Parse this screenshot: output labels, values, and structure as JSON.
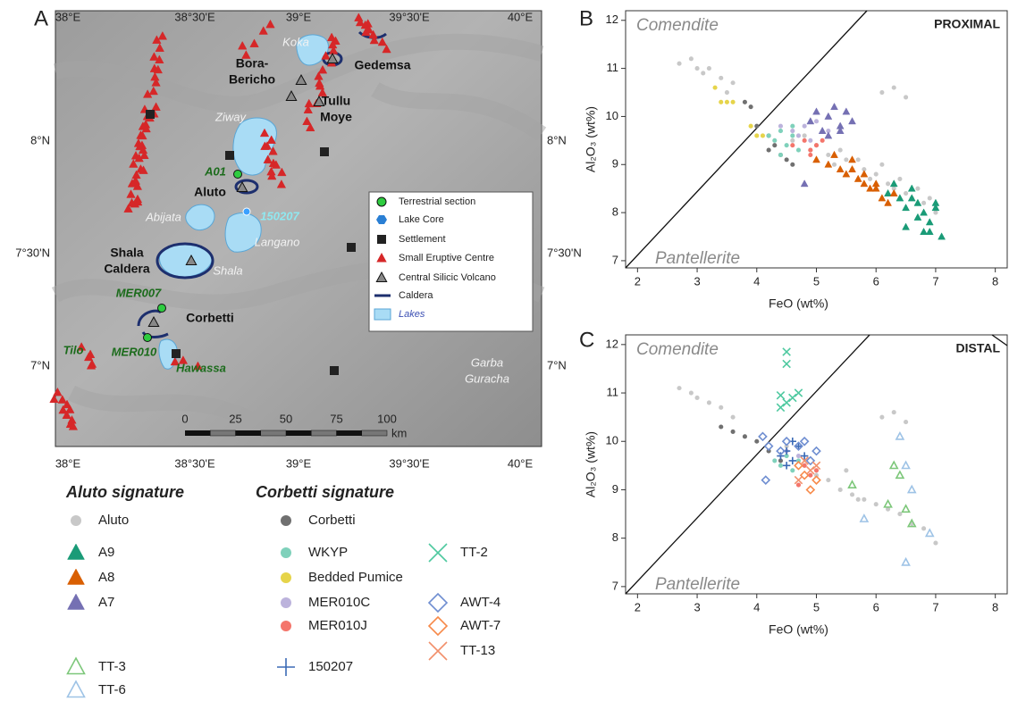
{
  "panel_labels": [
    "A",
    "B",
    "C"
  ],
  "map": {
    "lon_ticks": [
      "38°E",
      "38°30'E",
      "39°E",
      "39°30'E",
      "40°E"
    ],
    "lat_ticks": [
      "8°N",
      "7°30'N",
      "7°N"
    ],
    "places": [
      [
        "Koka"
      ],
      [
        "Bora-",
        "Bericho"
      ],
      [
        "Gedemsa"
      ],
      [
        "Tullu",
        "Moye"
      ],
      [
        "Ziway"
      ],
      [
        "A01"
      ],
      [
        "Aluto"
      ],
      [
        "Abijata"
      ],
      [
        "150207"
      ],
      [
        "Langano"
      ],
      [
        "Shala",
        "Caldera"
      ],
      [
        "Shala"
      ],
      [
        "MER007"
      ],
      [
        "Corbetti"
      ],
      [
        "Tilo"
      ],
      [
        "MER010"
      ],
      [
        "Hawassa"
      ],
      [
        "Garba",
        "Guracha"
      ]
    ],
    "legend": [
      "Terrestrial section",
      "Lake Core",
      "Settlement",
      "Small Eruptive Centre",
      "Central Silicic Volcano",
      "Caldera",
      "Lakes"
    ],
    "scale_bar": {
      "ticks": [
        0,
        25,
        50,
        75,
        100
      ],
      "unit": "km"
    }
  },
  "chart_data": {
    "type": "scatter",
    "x_label": "FeO (wt%)",
    "y_label": "Al₂O₃ (wt%)",
    "xlim": [
      1.8,
      8.2
    ],
    "ylim": [
      6.85,
      12.2
    ],
    "xticks": [
      2,
      3,
      4,
      5,
      6,
      7,
      8
    ],
    "yticks": [
      7,
      8,
      9,
      10,
      11,
      12
    ],
    "panels": [
      {
        "title": "PROXIMAL",
        "annotations": [
          "Comendite",
          "Pantellerite"
        ]
      },
      {
        "title": "DISTAL",
        "annotations": [
          "Comendite",
          "Pantellerite"
        ]
      }
    ],
    "groups": [
      {
        "title": "Aluto signature",
        "series": [
          {
            "name": "Aluto",
            "color": "#c8c8c8",
            "marker": "circle",
            "panels": [
              {
                "x": [
                  2.7,
                  2.9,
                  3.0,
                  3.1,
                  3.2,
                  3.4,
                  3.5,
                  3.6,
                  4.6,
                  4.9,
                  5.0,
                  5.2,
                  5.3,
                  5.5,
                  5.6,
                  5.8,
                  5.9,
                  6.0,
                  6.1,
                  6.2,
                  6.3,
                  6.4,
                  6.5,
                  6.6,
                  6.7,
                  6.8,
                  6.9,
                  7.0,
                  6.1,
                  6.3,
                  6.5,
                  5.4,
                  5.7,
                  4.8
                ],
                "y": [
                  11.1,
                  11.2,
                  11.0,
                  10.9,
                  11.0,
                  10.8,
                  10.5,
                  10.7,
                  9.5,
                  9.3,
                  9.4,
                  9.2,
                  9.0,
                  9.1,
                  8.9,
                  8.9,
                  8.7,
                  8.8,
                  9.0,
                  8.6,
                  8.5,
                  8.7,
                  8.4,
                  8.3,
                  8.5,
                  8.2,
                  8.3,
                  8.0,
                  10.5,
                  10.6,
                  10.4,
                  9.3,
                  9.1,
                  9.6
                ]
              },
              {
                "x": [
                  2.7,
                  2.9,
                  3.0,
                  3.2,
                  3.4,
                  3.6,
                  4.5,
                  4.8,
                  5.0,
                  5.2,
                  5.4,
                  5.6,
                  5.8,
                  6.0,
                  6.2,
                  6.4,
                  6.6,
                  6.8,
                  7.0,
                  6.1,
                  6.3,
                  6.5,
                  5.5,
                  5.7
                ],
                "y": [
                  11.1,
                  11.0,
                  10.9,
                  10.8,
                  10.7,
                  10.5,
                  9.9,
                  9.5,
                  9.3,
                  9.2,
                  9.0,
                  8.9,
                  8.8,
                  8.7,
                  8.6,
                  8.5,
                  8.3,
                  8.2,
                  7.9,
                  10.5,
                  10.6,
                  10.4,
                  9.4,
                  8.8
                ]
              }
            ]
          },
          {
            "name": "A9",
            "color": "#1a9b77",
            "marker": "triangle",
            "panels": [
              {
                "x": [
                  6.2,
                  6.4,
                  6.5,
                  6.6,
                  6.7,
                  6.8,
                  6.9,
                  7.0,
                  7.1,
                  6.5,
                  6.7,
                  6.9,
                  6.3,
                  6.6,
                  6.8,
                  7.0
                ],
                "y": [
                  8.4,
                  8.3,
                  8.1,
                  8.5,
                  8.2,
                  8.0,
                  7.8,
                  8.1,
                  7.5,
                  7.7,
                  7.9,
                  7.6,
                  8.6,
                  8.3,
                  7.6,
                  8.2
                ]
              },
              {
                "x": [],
                "y": []
              }
            ]
          },
          {
            "name": "A8",
            "color": "#d95f02",
            "marker": "triangle",
            "panels": [
              {
                "x": [
                  5.0,
                  5.2,
                  5.4,
                  5.5,
                  5.6,
                  5.7,
                  5.8,
                  5.9,
                  6.0,
                  6.1,
                  6.2,
                  5.6,
                  5.8,
                  6.0,
                  5.3,
                  6.3
                ],
                "y": [
                  9.1,
                  9.0,
                  8.9,
                  8.8,
                  8.9,
                  8.7,
                  8.6,
                  8.5,
                  8.5,
                  8.3,
                  8.2,
                  9.1,
                  8.8,
                  8.6,
                  9.2,
                  8.4
                ]
              },
              {
                "x": [],
                "y": []
              }
            ]
          },
          {
            "name": "A7",
            "color": "#7570b3",
            "marker": "triangle",
            "panels": [
              {
                "x": [
                  4.9,
                  5.0,
                  5.1,
                  5.2,
                  5.3,
                  5.4,
                  5.5,
                  5.6,
                  5.2,
                  5.4,
                  4.8
                ],
                "y": [
                  9.9,
                  10.1,
                  9.7,
                  10.0,
                  10.2,
                  9.8,
                  10.1,
                  9.9,
                  9.6,
                  9.7,
                  8.6
                ]
              },
              {
                "x": [],
                "y": []
              }
            ]
          },
          {
            "name": "TT-3",
            "color": "#7dc77a",
            "marker": "open-triangle",
            "panels": [
              {
                "x": [],
                "y": []
              },
              {
                "x": [
                  5.6,
                  6.3,
                  6.4,
                  6.5,
                  6.2,
                  6.6
                ],
                "y": [
                  9.1,
                  9.5,
                  9.3,
                  8.6,
                  8.7,
                  8.3
                ]
              }
            ]
          },
          {
            "name": "TT-6",
            "color": "#9ec3e6",
            "marker": "open-triangle",
            "panels": [
              {
                "x": [],
                "y": []
              },
              {
                "x": [
                  6.4,
                  6.5,
                  6.6,
                  6.9,
                  5.8,
                  6.5
                ],
                "y": [
                  10.1,
                  9.5,
                  9.0,
                  8.1,
                  8.4,
                  7.5
                ]
              }
            ]
          }
        ]
      },
      {
        "title": "Corbetti signature",
        "series": [
          {
            "name": "Corbetti",
            "color": "#707070",
            "marker": "circle",
            "panels": [
              {
                "x": [
                  3.8,
                  3.9,
                  4.0,
                  4.2,
                  4.3,
                  4.4,
                  4.5,
                  4.6,
                  4.2
                ],
                "y": [
                  10.3,
                  10.2,
                  9.8,
                  9.6,
                  9.4,
                  9.2,
                  9.1,
                  9.0,
                  9.3
                ]
              },
              {
                "x": [
                  3.4,
                  3.6,
                  3.8,
                  4.0,
                  4.2,
                  4.4
                ],
                "y": [
                  10.3,
                  10.2,
                  10.1,
                  10.0,
                  9.8,
                  9.6
                ]
              }
            ]
          },
          {
            "name": "WKYP",
            "color": "#7fd1bb",
            "marker": "circle",
            "panels": [
              {
                "x": [
                  4.2,
                  4.3,
                  4.4,
                  4.5,
                  4.6,
                  4.7,
                  4.4,
                  4.6
                ],
                "y": [
                  9.6,
                  9.5,
                  9.7,
                  9.4,
                  9.6,
                  9.3,
                  9.2,
                  9.8
                ]
              },
              {
                "x": [
                  4.3,
                  4.4,
                  4.5,
                  4.6,
                  4.7
                ],
                "y": [
                  9.6,
                  9.5,
                  9.7,
                  9.4,
                  9.6
                ]
              }
            ]
          },
          {
            "name": "Bedded Pumice",
            "color": "#e6d44a",
            "marker": "circle",
            "panels": [
              {
                "x": [
                  3.3,
                  3.4,
                  3.5,
                  3.6,
                  3.9,
                  4.0,
                  4.1
                ],
                "y": [
                  10.6,
                  10.3,
                  10.3,
                  10.3,
                  9.8,
                  9.6,
                  9.6
                ]
              },
              {
                "x": [],
                "y": []
              }
            ]
          },
          {
            "name": "MER010C",
            "color": "#bcb3dc",
            "marker": "circle",
            "panels": [
              {
                "x": [
                  4.4,
                  4.6,
                  4.8,
                  5.0,
                  5.2,
                  4.7,
                  4.9
                ],
                "y": [
                  9.8,
                  9.7,
                  9.8,
                  9.9,
                  9.7,
                  9.6,
                  9.5
                ]
              },
              {
                "x": [
                  4.5,
                  4.7
                ],
                "y": [
                  9.8,
                  9.7
                ]
              }
            ]
          },
          {
            "name": "MER010J",
            "color": "#f4756b",
            "marker": "circle",
            "panels": [
              {
                "x": [
                  4.6,
                  4.8,
                  4.9,
                  5.0,
                  5.1,
                  4.9
                ],
                "y": [
                  9.4,
                  9.5,
                  9.3,
                  9.4,
                  9.5,
                  9.2
                ]
              },
              {
                "x": [
                  4.8,
                  4.9,
                  5.0,
                  4.7
                ],
                "y": [
                  9.5,
                  9.3,
                  9.4,
                  9.1
                ]
              }
            ]
          },
          {
            "name": "150207",
            "color": "#3b6ab5",
            "marker": "plus",
            "panels": [
              {
                "x": [],
                "y": []
              },
              {
                "x": [
                  4.4,
                  4.5,
                  4.6,
                  4.7,
                  4.8,
                  4.5,
                  4.6
                ],
                "y": [
                  9.7,
                  9.8,
                  9.6,
                  9.9,
                  9.7,
                  9.5,
                  10.0
                ]
              }
            ]
          },
          {
            "name": "TT-2",
            "color": "#4fc9a0",
            "marker": "x",
            "panels": [
              {
                "x": [],
                "y": []
              },
              {
                "x": [
                  4.5,
                  4.5,
                  4.4,
                  4.5,
                  4.6,
                  4.7,
                  4.4
                ],
                "y": [
                  11.85,
                  11.6,
                  10.95,
                  10.8,
                  10.9,
                  11.0,
                  10.7
                ]
              }
            ]
          },
          {
            "name": "AWT-4",
            "color": "#6f8ed1",
            "marker": "open-diamond",
            "panels": [
              {
                "x": [],
                "y": []
              },
              {
                "x": [
                  4.1,
                  4.2,
                  4.4,
                  4.5,
                  4.7,
                  4.8,
                  4.9,
                  5.0,
                  4.15
                ],
                "y": [
                  10.1,
                  9.9,
                  9.8,
                  10.0,
                  9.9,
                  10.0,
                  9.6,
                  9.8,
                  9.2
                ]
              }
            ]
          },
          {
            "name": "AWT-7",
            "color": "#f78a4a",
            "marker": "open-diamond",
            "panels": [
              {
                "x": [],
                "y": []
              },
              {
                "x": [
                  4.7,
                  4.8,
                  4.9,
                  5.0
                ],
                "y": [
                  9.5,
                  9.3,
                  9.0,
                  9.2
                ]
              }
            ]
          },
          {
            "name": "TT-13",
            "color": "#f2906c",
            "marker": "x",
            "panels": [
              {
                "x": [],
                "y": []
              },
              {
                "x": [
                  4.8,
                  4.9,
                  5.0,
                  4.7
                ],
                "y": [
                  9.6,
                  9.4,
                  9.5,
                  9.2
                ]
              }
            ]
          }
        ]
      }
    ]
  }
}
